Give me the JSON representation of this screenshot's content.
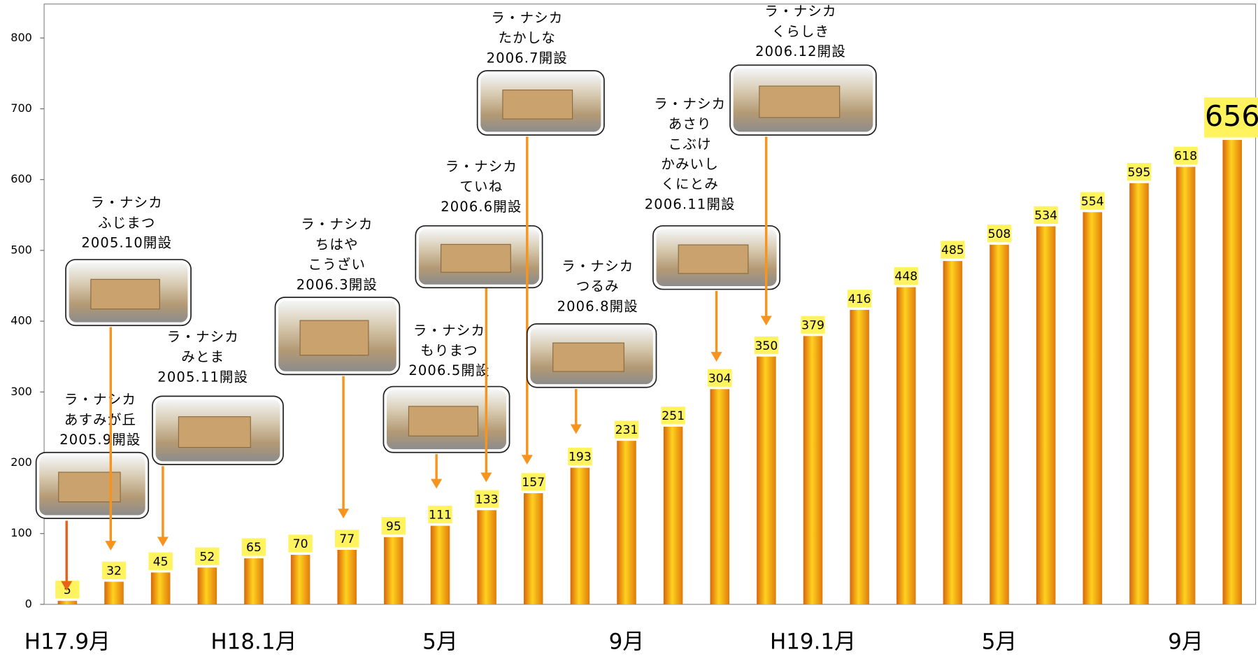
{
  "chart_data": {
    "type": "bar",
    "categories": [
      "H17.9月",
      null,
      null,
      null,
      "H18.1月",
      null,
      null,
      null,
      "5月",
      null,
      null,
      null,
      "9月",
      null,
      null,
      null,
      "H19.1月",
      null,
      null,
      null,
      "5月",
      null,
      null,
      null,
      "9月",
      null
    ],
    "values": [
      5,
      32,
      45,
      52,
      65,
      70,
      77,
      95,
      111,
      133,
      157,
      193,
      231,
      251,
      304,
      350,
      379,
      416,
      448,
      485,
      508,
      534,
      554,
      595,
      618,
      656
    ],
    "color": "#f7a21b",
    "ylim": [
      0,
      848
    ],
    "yticks": [
      0,
      100,
      200,
      300,
      400,
      500,
      600,
      700,
      800
    ],
    "annotations": [
      {
        "lines": [
          "ラ・ナシカ",
          "あすみが丘",
          "2005.9開設"
        ]
      },
      {
        "lines": [
          "ラ・ナシカ",
          "ふじまつ",
          "2005.10開設"
        ]
      },
      {
        "lines": [
          "ラ・ナシカ",
          "みとま",
          "2005.11開設"
        ]
      },
      {
        "lines": [
          "ラ・ナシカ",
          "ちはや",
          "こうざい",
          "2006.3開設"
        ]
      },
      {
        "lines": [
          "ラ・ナシカ",
          "もりまつ",
          "2006.5開設"
        ]
      },
      {
        "lines": [
          "ラ・ナシカ",
          "ていね",
          "2006.6開設"
        ]
      },
      {
        "lines": [
          "ラ・ナシカ",
          "たかしな",
          "2006.7開設"
        ]
      },
      {
        "lines": [
          "ラ・ナシカ",
          "つるみ",
          "2006.8開設"
        ]
      },
      {
        "lines": [
          "ラ・ナシカ",
          "あさり",
          "こぶけ",
          "かみいし",
          "くにとみ",
          "2006.11開設"
        ]
      },
      {
        "lines": [
          "ラ・ナシカ",
          "くらしき",
          "2006.12開設"
        ]
      }
    ]
  }
}
